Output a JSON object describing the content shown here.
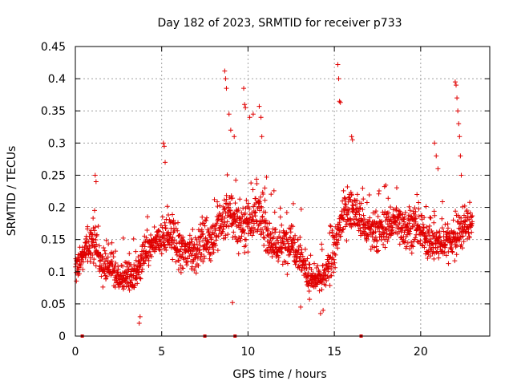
{
  "chart_data": {
    "type": "scatter",
    "title": "Day 182 of 2023, SRMTID for receiver p733",
    "xlabel": "GPS time / hours",
    "ylabel": "SRMTID / TECUs",
    "xlim": [
      0,
      24
    ],
    "ylim": [
      0,
      0.45
    ],
    "grid": true,
    "marker": "+",
    "marker_color": "#e00000",
    "x_ticks": [
      {
        "value": 0,
        "label": "0"
      },
      {
        "value": 5,
        "label": "5"
      },
      {
        "value": 10,
        "label": "10"
      },
      {
        "value": 15,
        "label": "15"
      },
      {
        "value": 20,
        "label": "20"
      }
    ],
    "y_ticks": [
      {
        "value": 0,
        "label": "0"
      },
      {
        "value": 0.05,
        "label": "0.05"
      },
      {
        "value": 0.1,
        "label": "0.1"
      },
      {
        "value": 0.15,
        "label": "0.15"
      },
      {
        "value": 0.2,
        "label": "0.2"
      },
      {
        "value": 0.25,
        "label": "0.25"
      },
      {
        "value": 0.3,
        "label": "0.3"
      },
      {
        "value": 0.35,
        "label": "0.35"
      },
      {
        "value": 0.4,
        "label": "0.4"
      },
      {
        "value": 0.45,
        "label": "0.45"
      }
    ],
    "zero_marks_x": [
      0.4,
      7.5,
      9.25,
      16.55
    ],
    "series": [
      {
        "name": "SRMTID",
        "profile": [
          [
            0.0,
            0.1,
            0.03
          ],
          [
            0.5,
            0.13,
            0.03
          ],
          [
            1.0,
            0.15,
            0.035
          ],
          [
            1.5,
            0.11,
            0.03
          ],
          [
            2.0,
            0.11,
            0.03
          ],
          [
            2.5,
            0.09,
            0.025
          ],
          [
            3.0,
            0.095,
            0.03
          ],
          [
            3.5,
            0.09,
            0.035
          ],
          [
            4.0,
            0.13,
            0.035
          ],
          [
            4.5,
            0.14,
            0.03
          ],
          [
            5.0,
            0.15,
            0.035
          ],
          [
            5.5,
            0.16,
            0.04
          ],
          [
            6.0,
            0.13,
            0.035
          ],
          [
            6.5,
            0.13,
            0.035
          ],
          [
            7.0,
            0.13,
            0.035
          ],
          [
            7.5,
            0.15,
            0.04
          ],
          [
            8.0,
            0.15,
            0.035
          ],
          [
            8.5,
            0.18,
            0.05
          ],
          [
            9.0,
            0.19,
            0.045
          ],
          [
            9.5,
            0.17,
            0.045
          ],
          [
            10.0,
            0.18,
            0.05
          ],
          [
            10.5,
            0.19,
            0.045
          ],
          [
            11.0,
            0.17,
            0.045
          ],
          [
            11.5,
            0.14,
            0.04
          ],
          [
            12.0,
            0.14,
            0.04
          ],
          [
            12.5,
            0.15,
            0.045
          ],
          [
            13.0,
            0.13,
            0.04
          ],
          [
            13.5,
            0.09,
            0.03
          ],
          [
            14.0,
            0.085,
            0.025
          ],
          [
            14.5,
            0.095,
            0.03
          ],
          [
            15.0,
            0.13,
            0.04
          ],
          [
            15.5,
            0.19,
            0.04
          ],
          [
            16.0,
            0.2,
            0.035
          ],
          [
            16.5,
            0.18,
            0.04
          ],
          [
            17.0,
            0.16,
            0.04
          ],
          [
            17.5,
            0.16,
            0.04
          ],
          [
            18.0,
            0.17,
            0.04
          ],
          [
            18.5,
            0.18,
            0.04
          ],
          [
            19.0,
            0.17,
            0.04
          ],
          [
            19.5,
            0.17,
            0.04
          ],
          [
            20.0,
            0.16,
            0.035
          ],
          [
            20.5,
            0.15,
            0.035
          ],
          [
            21.0,
            0.14,
            0.035
          ],
          [
            21.5,
            0.15,
            0.035
          ],
          [
            22.0,
            0.15,
            0.035
          ],
          [
            22.5,
            0.17,
            0.04
          ],
          [
            23.0,
            0.18,
            0.035
          ]
        ],
        "sample_step_hours": 0.012,
        "spikes": [
          {
            "x": 8.65,
            "y": 0.412
          },
          {
            "x": 8.7,
            "y": 0.4
          },
          {
            "x": 8.75,
            "y": 0.385
          },
          {
            "x": 8.9,
            "y": 0.345
          },
          {
            "x": 9.0,
            "y": 0.32
          },
          {
            "x": 9.2,
            "y": 0.31
          },
          {
            "x": 9.75,
            "y": 0.385
          },
          {
            "x": 9.8,
            "y": 0.36
          },
          {
            "x": 9.85,
            "y": 0.355
          },
          {
            "x": 10.1,
            "y": 0.34
          },
          {
            "x": 10.3,
            "y": 0.345
          },
          {
            "x": 10.65,
            "y": 0.357
          },
          {
            "x": 10.75,
            "y": 0.34
          },
          {
            "x": 10.8,
            "y": 0.31
          },
          {
            "x": 5.1,
            "y": 0.3
          },
          {
            "x": 5.15,
            "y": 0.295
          },
          {
            "x": 5.2,
            "y": 0.27
          },
          {
            "x": 1.15,
            "y": 0.25
          },
          {
            "x": 1.2,
            "y": 0.24
          },
          {
            "x": 15.2,
            "y": 0.422
          },
          {
            "x": 15.25,
            "y": 0.4
          },
          {
            "x": 15.3,
            "y": 0.365
          },
          {
            "x": 15.35,
            "y": 0.363
          },
          {
            "x": 16.0,
            "y": 0.31
          },
          {
            "x": 16.05,
            "y": 0.305
          },
          {
            "x": 20.8,
            "y": 0.3
          },
          {
            "x": 20.9,
            "y": 0.28
          },
          {
            "x": 21.0,
            "y": 0.26
          },
          {
            "x": 22.0,
            "y": 0.395
          },
          {
            "x": 22.05,
            "y": 0.39
          },
          {
            "x": 22.1,
            "y": 0.37
          },
          {
            "x": 22.15,
            "y": 0.35
          },
          {
            "x": 22.2,
            "y": 0.33
          },
          {
            "x": 22.25,
            "y": 0.31
          },
          {
            "x": 22.3,
            "y": 0.28
          },
          {
            "x": 22.35,
            "y": 0.25
          },
          {
            "x": 3.7,
            "y": 0.02
          },
          {
            "x": 3.75,
            "y": 0.03
          },
          {
            "x": 14.2,
            "y": 0.035
          },
          {
            "x": 14.35,
            "y": 0.04
          },
          {
            "x": 13.05,
            "y": 0.045
          },
          {
            "x": 9.1,
            "y": 0.052
          }
        ]
      }
    ]
  }
}
